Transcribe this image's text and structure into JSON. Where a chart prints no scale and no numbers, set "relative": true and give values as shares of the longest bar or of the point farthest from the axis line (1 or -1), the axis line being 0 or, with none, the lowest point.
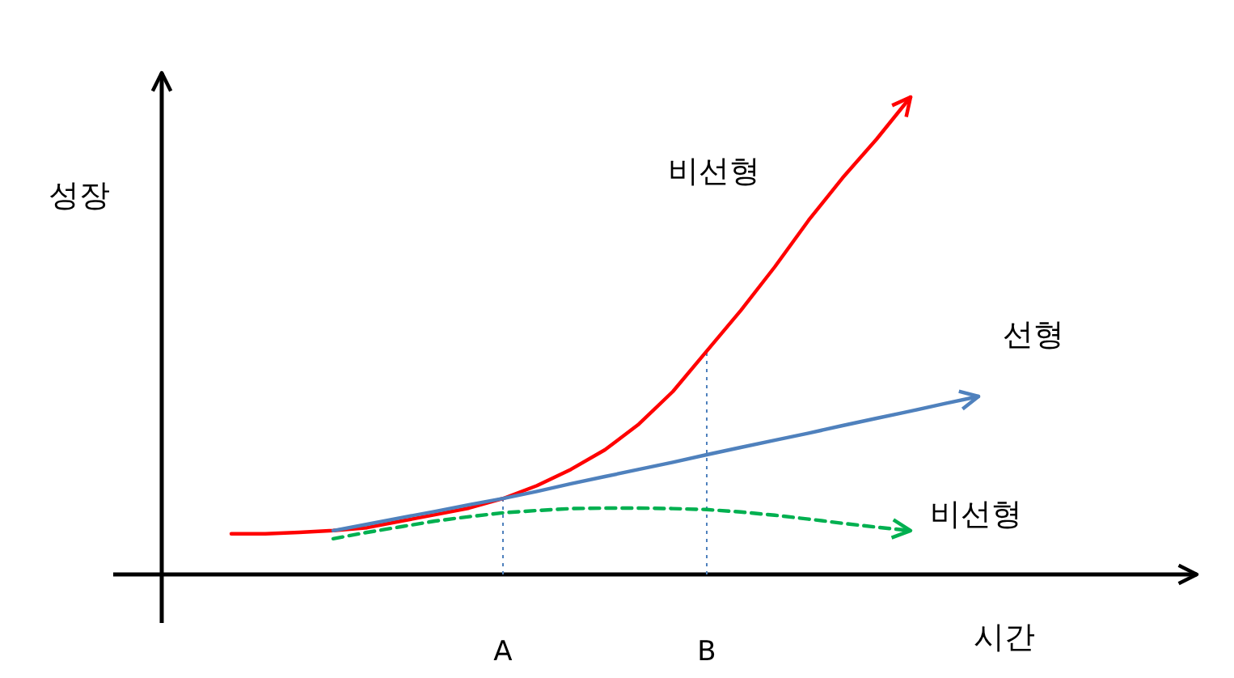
{
  "chart_data": {
    "type": "line",
    "relative": true,
    "xlabel": "시간",
    "ylabel": "성장",
    "categories": [
      null,
      null,
      null,
      null,
      null,
      null,
      null,
      null,
      "A",
      null,
      null,
      null,
      null,
      null,
      "B",
      null,
      null,
      null,
      null,
      null,
      null,
      null,
      null
    ],
    "series": [
      {
        "name": "비선형",
        "color": "#ff0000",
        "line_style": "solid",
        "values": [
          0.085,
          0.085,
          0.088,
          0.092,
          0.098,
          0.112,
          0.125,
          0.139,
          0.159,
          0.186,
          0.22,
          0.261,
          0.315,
          0.383,
          0.468,
          0.553,
          0.644,
          0.742,
          0.831,
          0.912,
          1.0,
          null,
          null
        ]
      },
      {
        "name": "선형",
        "color": "#4f81bd",
        "line_style": "solid",
        "values": [
          null,
          null,
          null,
          0.092,
          0.105,
          0.119,
          0.132,
          0.146,
          0.159,
          0.174,
          0.19,
          0.205,
          0.22,
          0.235,
          0.251,
          0.266,
          0.281,
          0.296,
          0.312,
          0.327,
          0.342,
          0.358,
          0.373
        ]
      },
      {
        "name": "비선형",
        "color": "#00b050",
        "line_style": "dashed",
        "values": [
          null,
          null,
          null,
          0.075,
          0.088,
          0.1,
          0.112,
          0.121,
          0.129,
          0.134,
          0.138,
          0.139,
          0.139,
          0.138,
          0.136,
          0.131,
          0.124,
          0.116,
          0.107,
          0.099,
          0.092,
          null,
          null
        ]
      }
    ],
    "ref_lines": [
      {
        "axis": "x",
        "value": "A",
        "color": "#4f81bd",
        "line_style": "dotted"
      },
      {
        "axis": "x",
        "value": "B",
        "color": "#4f81bd",
        "line_style": "dotted"
      }
    ]
  }
}
